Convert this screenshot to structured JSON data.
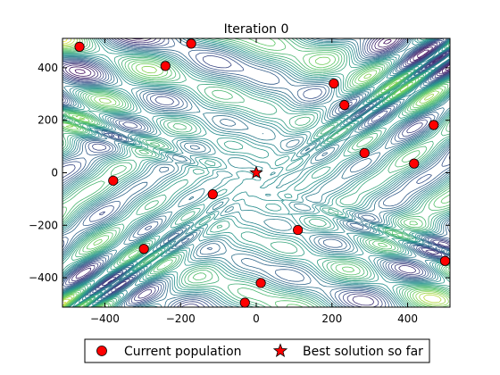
{
  "chart_data": {
    "type": "scatter",
    "title": "Iteration 0",
    "xlabel": "",
    "ylabel": "",
    "xlim": [
      -512,
      512
    ],
    "ylim": [
      -512,
      512
    ],
    "x_ticks": [
      -400,
      -200,
      0,
      200,
      400
    ],
    "y_ticks": [
      400,
      200,
      0,
      -200,
      -400
    ],
    "x_tick_labels": [
      "−400",
      "−200",
      "0",
      "200",
      "400"
    ],
    "y_tick_labels": [
      "400",
      "200",
      "0",
      "−200",
      "−400"
    ],
    "grid": false,
    "background": "contour",
    "legend_position": "bottom",
    "series": [
      {
        "name": "Current population",
        "marker": "circle",
        "color": "#ff0000",
        "points": [
          [
            -467,
            480
          ],
          [
            -172,
            492
          ],
          [
            -240,
            407
          ],
          [
            205,
            340
          ],
          [
            233,
            258
          ],
          [
            469,
            182
          ],
          [
            286,
            75
          ],
          [
            417,
            35
          ],
          [
            -378,
            -30
          ],
          [
            -115,
            -82
          ],
          [
            110,
            -218
          ],
          [
            -297,
            -290
          ],
          [
            499,
            -336
          ],
          [
            12,
            -420
          ],
          [
            -30,
            -495
          ]
        ]
      },
      {
        "name": "Best solution so far",
        "marker": "star",
        "color": "#ff0000",
        "points": [
          [
            0,
            0
          ]
        ]
      }
    ]
  }
}
